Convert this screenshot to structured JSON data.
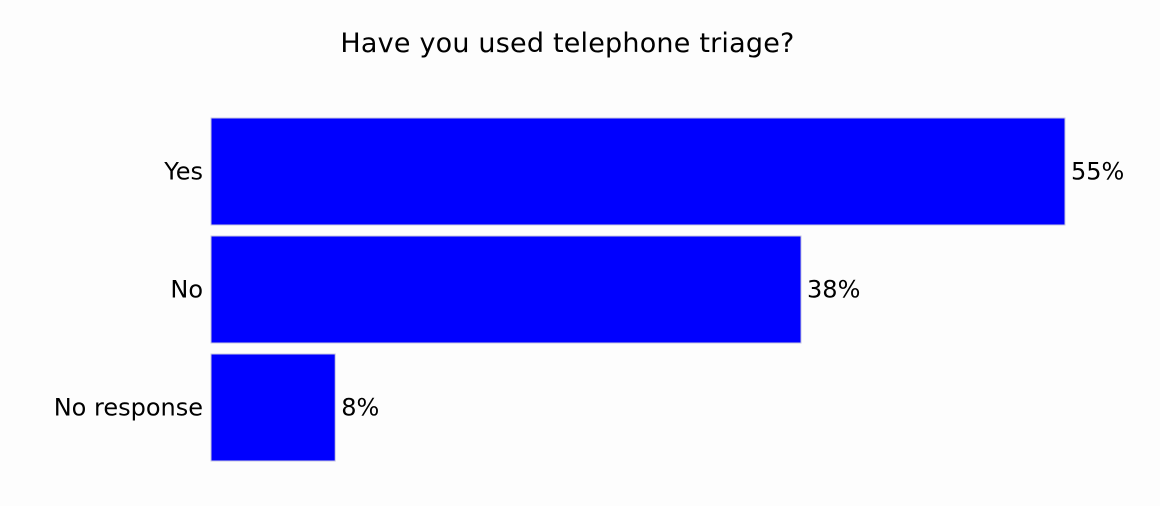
{
  "chart_data": {
    "type": "bar",
    "orientation": "horizontal",
    "title": "Have you used telephone triage?",
    "categories": [
      "Yes",
      "No",
      "No response"
    ],
    "values": [
      55,
      38,
      8
    ],
    "value_labels": [
      "55%",
      "38%",
      "8%"
    ],
    "unit": "%",
    "xlabel": "",
    "ylabel": "",
    "xlim": [
      0,
      55
    ],
    "grid": false,
    "legend": "none",
    "bar_color": "#0000ff"
  }
}
